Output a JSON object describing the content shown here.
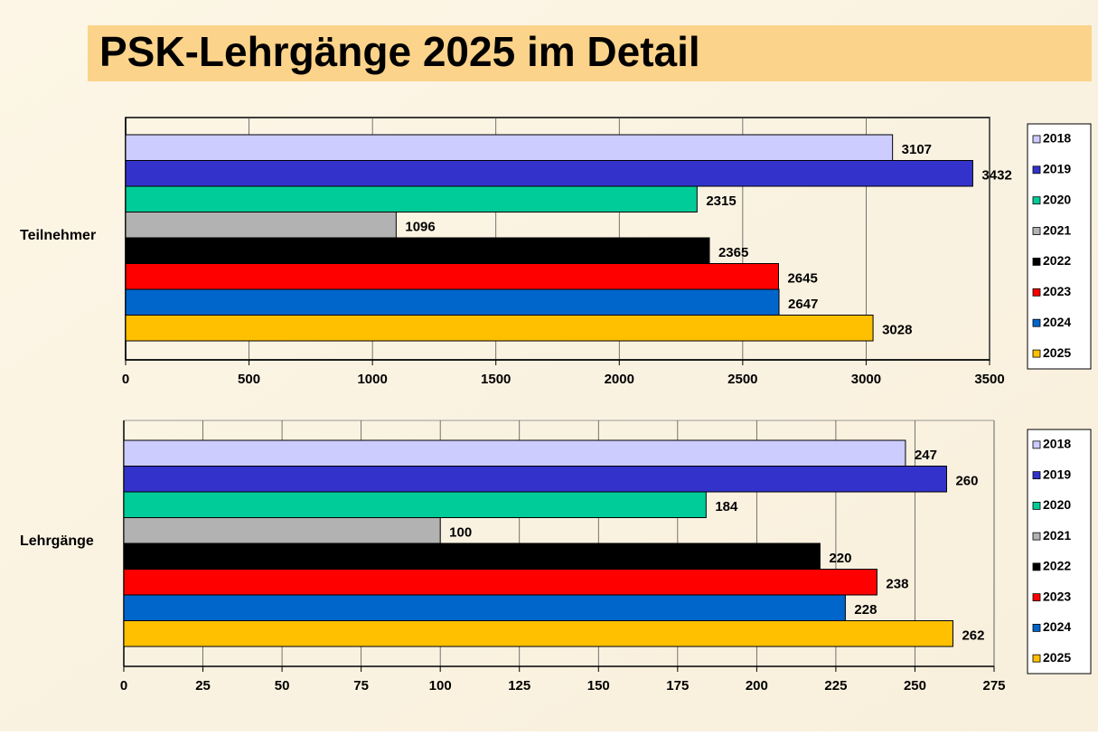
{
  "title": "PSK-Lehrgänge 2025 im Detail",
  "chart_data": [
    {
      "type": "bar",
      "orientation": "horizontal",
      "categories": [
        "Teilnehmer"
      ],
      "series": [
        {
          "name": "2018",
          "color": "#ccccff",
          "values": [
            3107
          ]
        },
        {
          "name": "2019",
          "color": "#3333cc",
          "values": [
            3432
          ]
        },
        {
          "name": "2020",
          "color": "#00cc99",
          "values": [
            2315
          ]
        },
        {
          "name": "2021",
          "color": "#b2b2b2",
          "values": [
            1096
          ]
        },
        {
          "name": "2022",
          "color": "#000000",
          "values": [
            2365
          ]
        },
        {
          "name": "2023",
          "color": "#ff0000",
          "values": [
            2645
          ]
        },
        {
          "name": "2024",
          "color": "#0066cc",
          "values": [
            2647
          ]
        },
        {
          "name": "2025",
          "color": "#ffc000",
          "values": [
            3028
          ]
        }
      ],
      "xlim": [
        0,
        3500
      ],
      "xticks": [
        0,
        500,
        1000,
        1500,
        2000,
        2500,
        3000,
        3500
      ],
      "grid": true,
      "legend": "right"
    },
    {
      "type": "bar",
      "orientation": "horizontal",
      "categories": [
        "Lehrgänge"
      ],
      "series": [
        {
          "name": "2018",
          "color": "#ccccff",
          "values": [
            247
          ]
        },
        {
          "name": "2019",
          "color": "#3333cc",
          "values": [
            260
          ]
        },
        {
          "name": "2020",
          "color": "#00cc99",
          "values": [
            184
          ]
        },
        {
          "name": "2021",
          "color": "#b2b2b2",
          "values": [
            100
          ]
        },
        {
          "name": "2022",
          "color": "#000000",
          "values": [
            220
          ]
        },
        {
          "name": "2023",
          "color": "#ff0000",
          "values": [
            238
          ]
        },
        {
          "name": "2024",
          "color": "#0066cc",
          "values": [
            228
          ]
        },
        {
          "name": "2025",
          "color": "#ffc000",
          "values": [
            262
          ]
        }
      ],
      "xlim": [
        0,
        275
      ],
      "xticks": [
        0,
        25,
        50,
        75,
        100,
        125,
        150,
        175,
        200,
        225,
        250,
        275
      ],
      "grid": true,
      "legend": "right"
    }
  ]
}
